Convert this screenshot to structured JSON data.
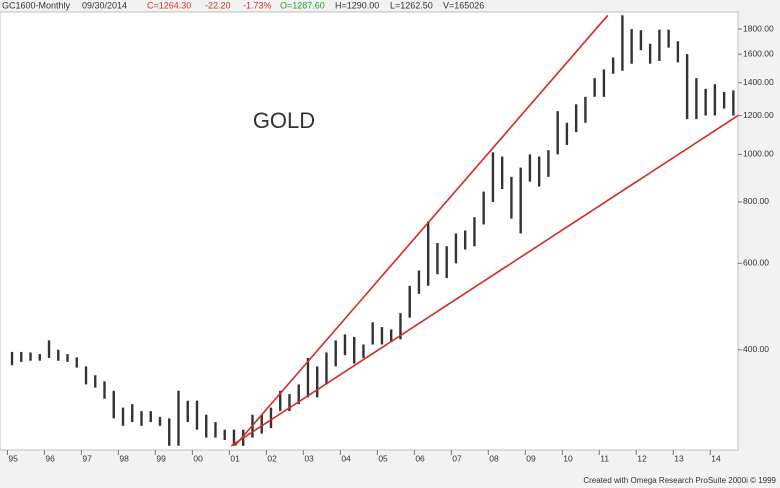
{
  "chart_data": {
    "type": "ohlc",
    "title": "GOLD",
    "header": [
      {
        "text": "GC1600-Monthly",
        "color": "#333333"
      },
      {
        "text": "09/30/2014",
        "color": "#333333"
      },
      {
        "text": "C=1264.30",
        "color": "#d03030"
      },
      {
        "text": "-22.20",
        "color": "#d03030"
      },
      {
        "text": "-1.73%",
        "color": "#d03030"
      },
      {
        "text": "O=1287.60",
        "color": "#2a9a2a"
      },
      {
        "text": "H=1290.00",
        "color": "#333333"
      },
      {
        "text": "L=1262.50",
        "color": "#333333"
      },
      {
        "text": "V=165026",
        "color": "#333333"
      }
    ],
    "footer": "Created with Omega Research ProSuite 2000i © 1999",
    "log_scale": true,
    "grid": false,
    "xlim": [
      1994.8,
      2014.75
    ],
    "ylim": [
      250,
      1950
    ],
    "xticks": [
      {
        "value": 1995,
        "label": "95"
      },
      {
        "value": 1996,
        "label": "96"
      },
      {
        "value": 1997,
        "label": "97"
      },
      {
        "value": 1998,
        "label": "98"
      },
      {
        "value": 1999,
        "label": "99"
      },
      {
        "value": 2000,
        "label": "00"
      },
      {
        "value": 2001,
        "label": "01"
      },
      {
        "value": 2002,
        "label": "02"
      },
      {
        "value": 2003,
        "label": "03"
      },
      {
        "value": 2004,
        "label": "04"
      },
      {
        "value": 2005,
        "label": "05"
      },
      {
        "value": 2006,
        "label": "06"
      },
      {
        "value": 2007,
        "label": "07"
      },
      {
        "value": 2008,
        "label": "08"
      },
      {
        "value": 2009,
        "label": "09"
      },
      {
        "value": 2010,
        "label": "10"
      },
      {
        "value": 2011,
        "label": "11"
      },
      {
        "value": 2012,
        "label": "12"
      },
      {
        "value": 2013,
        "label": "13"
      },
      {
        "value": 2014,
        "label": "14"
      }
    ],
    "yticks": [
      {
        "value": 400,
        "label": "400.00"
      },
      {
        "value": 600,
        "label": "600.00"
      },
      {
        "value": 800,
        "label": "800.00"
      },
      {
        "value": 1000,
        "label": "1000.00"
      },
      {
        "value": 1200,
        "label": "1200.00"
      },
      {
        "value": 1400,
        "label": "1400.00"
      },
      {
        "value": 1600,
        "label": "1600.00"
      },
      {
        "value": 1800,
        "label": "1800.00"
      }
    ],
    "x": [
      1995.125,
      1995.375,
      1995.625,
      1995.875,
      1996.125,
      1996.375,
      1996.625,
      1996.875,
      1997.125,
      1997.375,
      1997.625,
      1997.875,
      1998.125,
      1998.375,
      1998.625,
      1998.875,
      1999.125,
      1999.375,
      1999.625,
      1999.875,
      2000.125,
      2000.375,
      2000.625,
      2000.875,
      2001.125,
      2001.375,
      2001.625,
      2001.875,
      2002.125,
      2002.375,
      2002.625,
      2002.875,
      2003.125,
      2003.375,
      2003.625,
      2003.875,
      2004.125,
      2004.375,
      2004.625,
      2004.875,
      2005.125,
      2005.375,
      2005.625,
      2005.875,
      2006.125,
      2006.375,
      2006.625,
      2006.875,
      2007.125,
      2007.375,
      2007.625,
      2007.875,
      2008.125,
      2008.375,
      2008.625,
      2008.875,
      2009.125,
      2009.375,
      2009.625,
      2009.875,
      2010.125,
      2010.375,
      2010.625,
      2010.875,
      2011.125,
      2011.375,
      2011.625,
      2011.875,
      2012.125,
      2012.375,
      2012.625,
      2012.875,
      2013.125,
      2013.375,
      2013.625,
      2013.875,
      2014.125,
      2014.375,
      2014.625
    ],
    "series": [
      {
        "color": "#333333",
        "high": [
          396,
          396,
          395,
          392,
          418,
          400,
          392,
          386,
          370,
          355,
          345,
          330,
          305,
          310,
          300,
          300,
          292,
          290,
          330,
          315,
          315,
          295,
          285,
          275,
          275,
          275,
          295,
          295,
          305,
          330,
          325,
          340,
          385,
          370,
          395,
          418,
          430,
          425,
          410,
          455,
          445,
          440,
          475,
          540,
          580,
          730,
          660,
          650,
          690,
          700,
          745,
          840,
          1010,
          990,
          900,
          940,
          1000,
          990,
          1020,
          1225,
          1160,
          1265,
          1310,
          1430,
          1490,
          1575,
          1920,
          1800,
          1790,
          1680,
          1795,
          1795,
          1700,
          1600,
          1430,
          1360,
          1390,
          1340,
          1350
        ],
        "low": [
          372,
          378,
          380,
          380,
          385,
          380,
          378,
          368,
          340,
          335,
          318,
          290,
          280,
          285,
          280,
          285,
          280,
          255,
          255,
          285,
          275,
          265,
          265,
          262,
          255,
          255,
          265,
          270,
          277,
          300,
          300,
          310,
          320,
          320,
          340,
          370,
          390,
          375,
          385,
          410,
          410,
          415,
          420,
          465,
          520,
          540,
          570,
          560,
          600,
          640,
          650,
          720,
          800,
          850,
          740,
          690,
          880,
          860,
          900,
          1000,
          1045,
          1110,
          1160,
          1310,
          1310,
          1460,
          1480,
          1530,
          1630,
          1530,
          1550,
          1650,
          1540,
          1180,
          1180,
          1200,
          1200,
          1240,
          1200
        ]
      }
    ],
    "trendlines": [
      {
        "color": "#d42a2a",
        "x": [
          2001.15,
          2011.23
        ],
        "y": [
          255,
          1920
        ]
      },
      {
        "color": "#d42a2a",
        "x": [
          2001.05,
          2014.75
        ],
        "y": [
          255,
          1200
        ]
      }
    ]
  }
}
